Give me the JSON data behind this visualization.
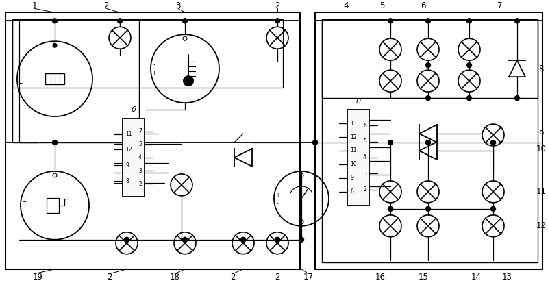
{
  "bg": "#ffffff",
  "lc": "#000000",
  "lw": 1.3,
  "tlw": 0.9,
  "fig_w": 8.0,
  "fig_h": 4.13,
  "dpi": 100
}
